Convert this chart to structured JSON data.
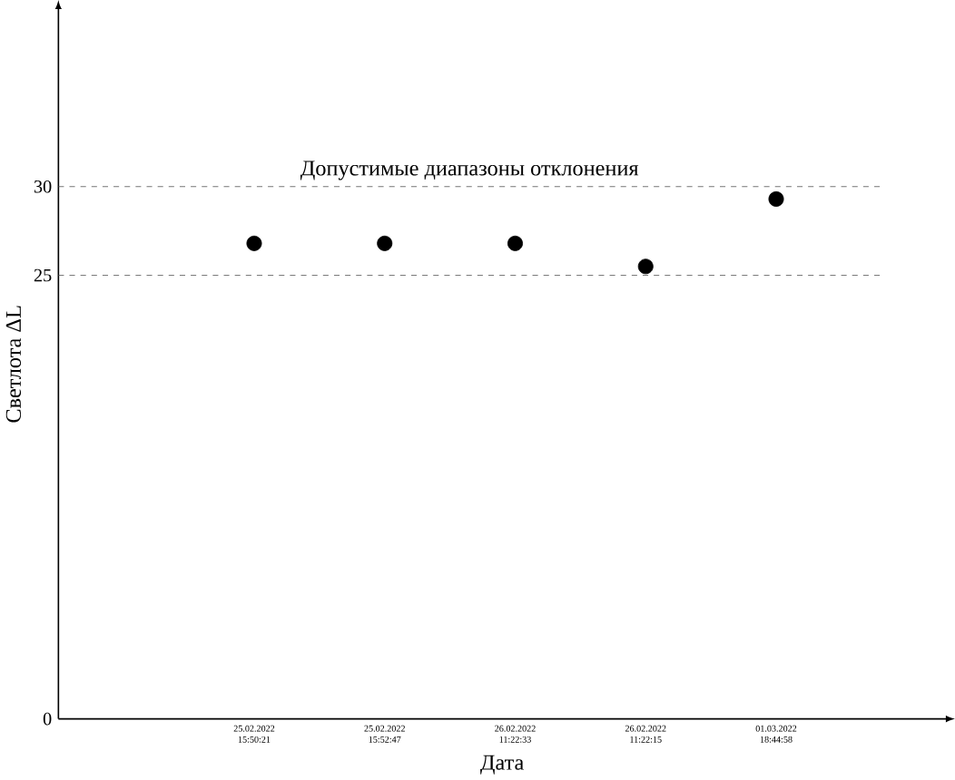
{
  "chart_data": {
    "type": "scatter",
    "xlabel": "Дата",
    "ylabel": "Светлота ΔL",
    "categories": [
      "25.02.2022 15:50:21",
      "25.02.2022 15:52:47",
      "26.02.2022 11:22:33",
      "26.02.2022 11:22:15",
      "01.03.2022 18:44:58"
    ],
    "values": [
      26.8,
      26.8,
      26.8,
      25.5,
      29.3
    ],
    "color": "#000000",
    "marker": "circle",
    "ylim": [
      0,
      40
    ],
    "yticks": [
      0,
      25,
      30
    ],
    "ref_lines": [
      {
        "axis": "y",
        "value": 30,
        "color": "#555555",
        "line_style": "dashed"
      },
      {
        "axis": "y",
        "value": 25,
        "color": "#555555",
        "line_style": "dashed"
      }
    ],
    "annotations": [
      {
        "text": "Допустимые диапазоны отклонения",
        "y": 30
      }
    ]
  }
}
